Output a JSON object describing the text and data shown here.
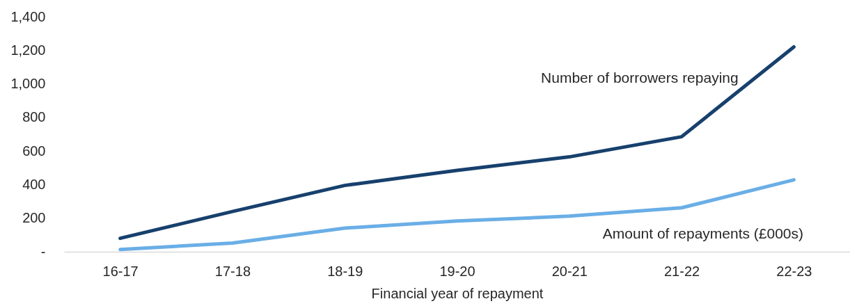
{
  "chart_data": {
    "type": "line",
    "xlabel": "Financial year of repayment",
    "categories": [
      "16-17",
      "17-18",
      "18-19",
      "19-20",
      "20-21",
      "21-22",
      "22-23"
    ],
    "series": [
      {
        "name": "Number of borrowers repaying",
        "color": "#17406d",
        "values": [
          80,
          240,
          395,
          485,
          565,
          685,
          1220
        ]
      },
      {
        "name": "Amount of repayments (£000s)",
        "color": "#6aaee6",
        "values": [
          13,
          52,
          141,
          183,
          212,
          262,
          428
        ]
      }
    ],
    "ylim": [
      0,
      1400
    ],
    "yticks": [
      {
        "value": 0,
        "label": "-"
      },
      200,
      400,
      600,
      800,
      {
        "value": 1000,
        "label": "1,000"
      },
      {
        "value": 1200,
        "label": "1,200"
      },
      {
        "value": 1400,
        "label": "1,400"
      }
    ],
    "grid": false,
    "legend": false,
    "marker": "none",
    "line_style": "solid"
  }
}
